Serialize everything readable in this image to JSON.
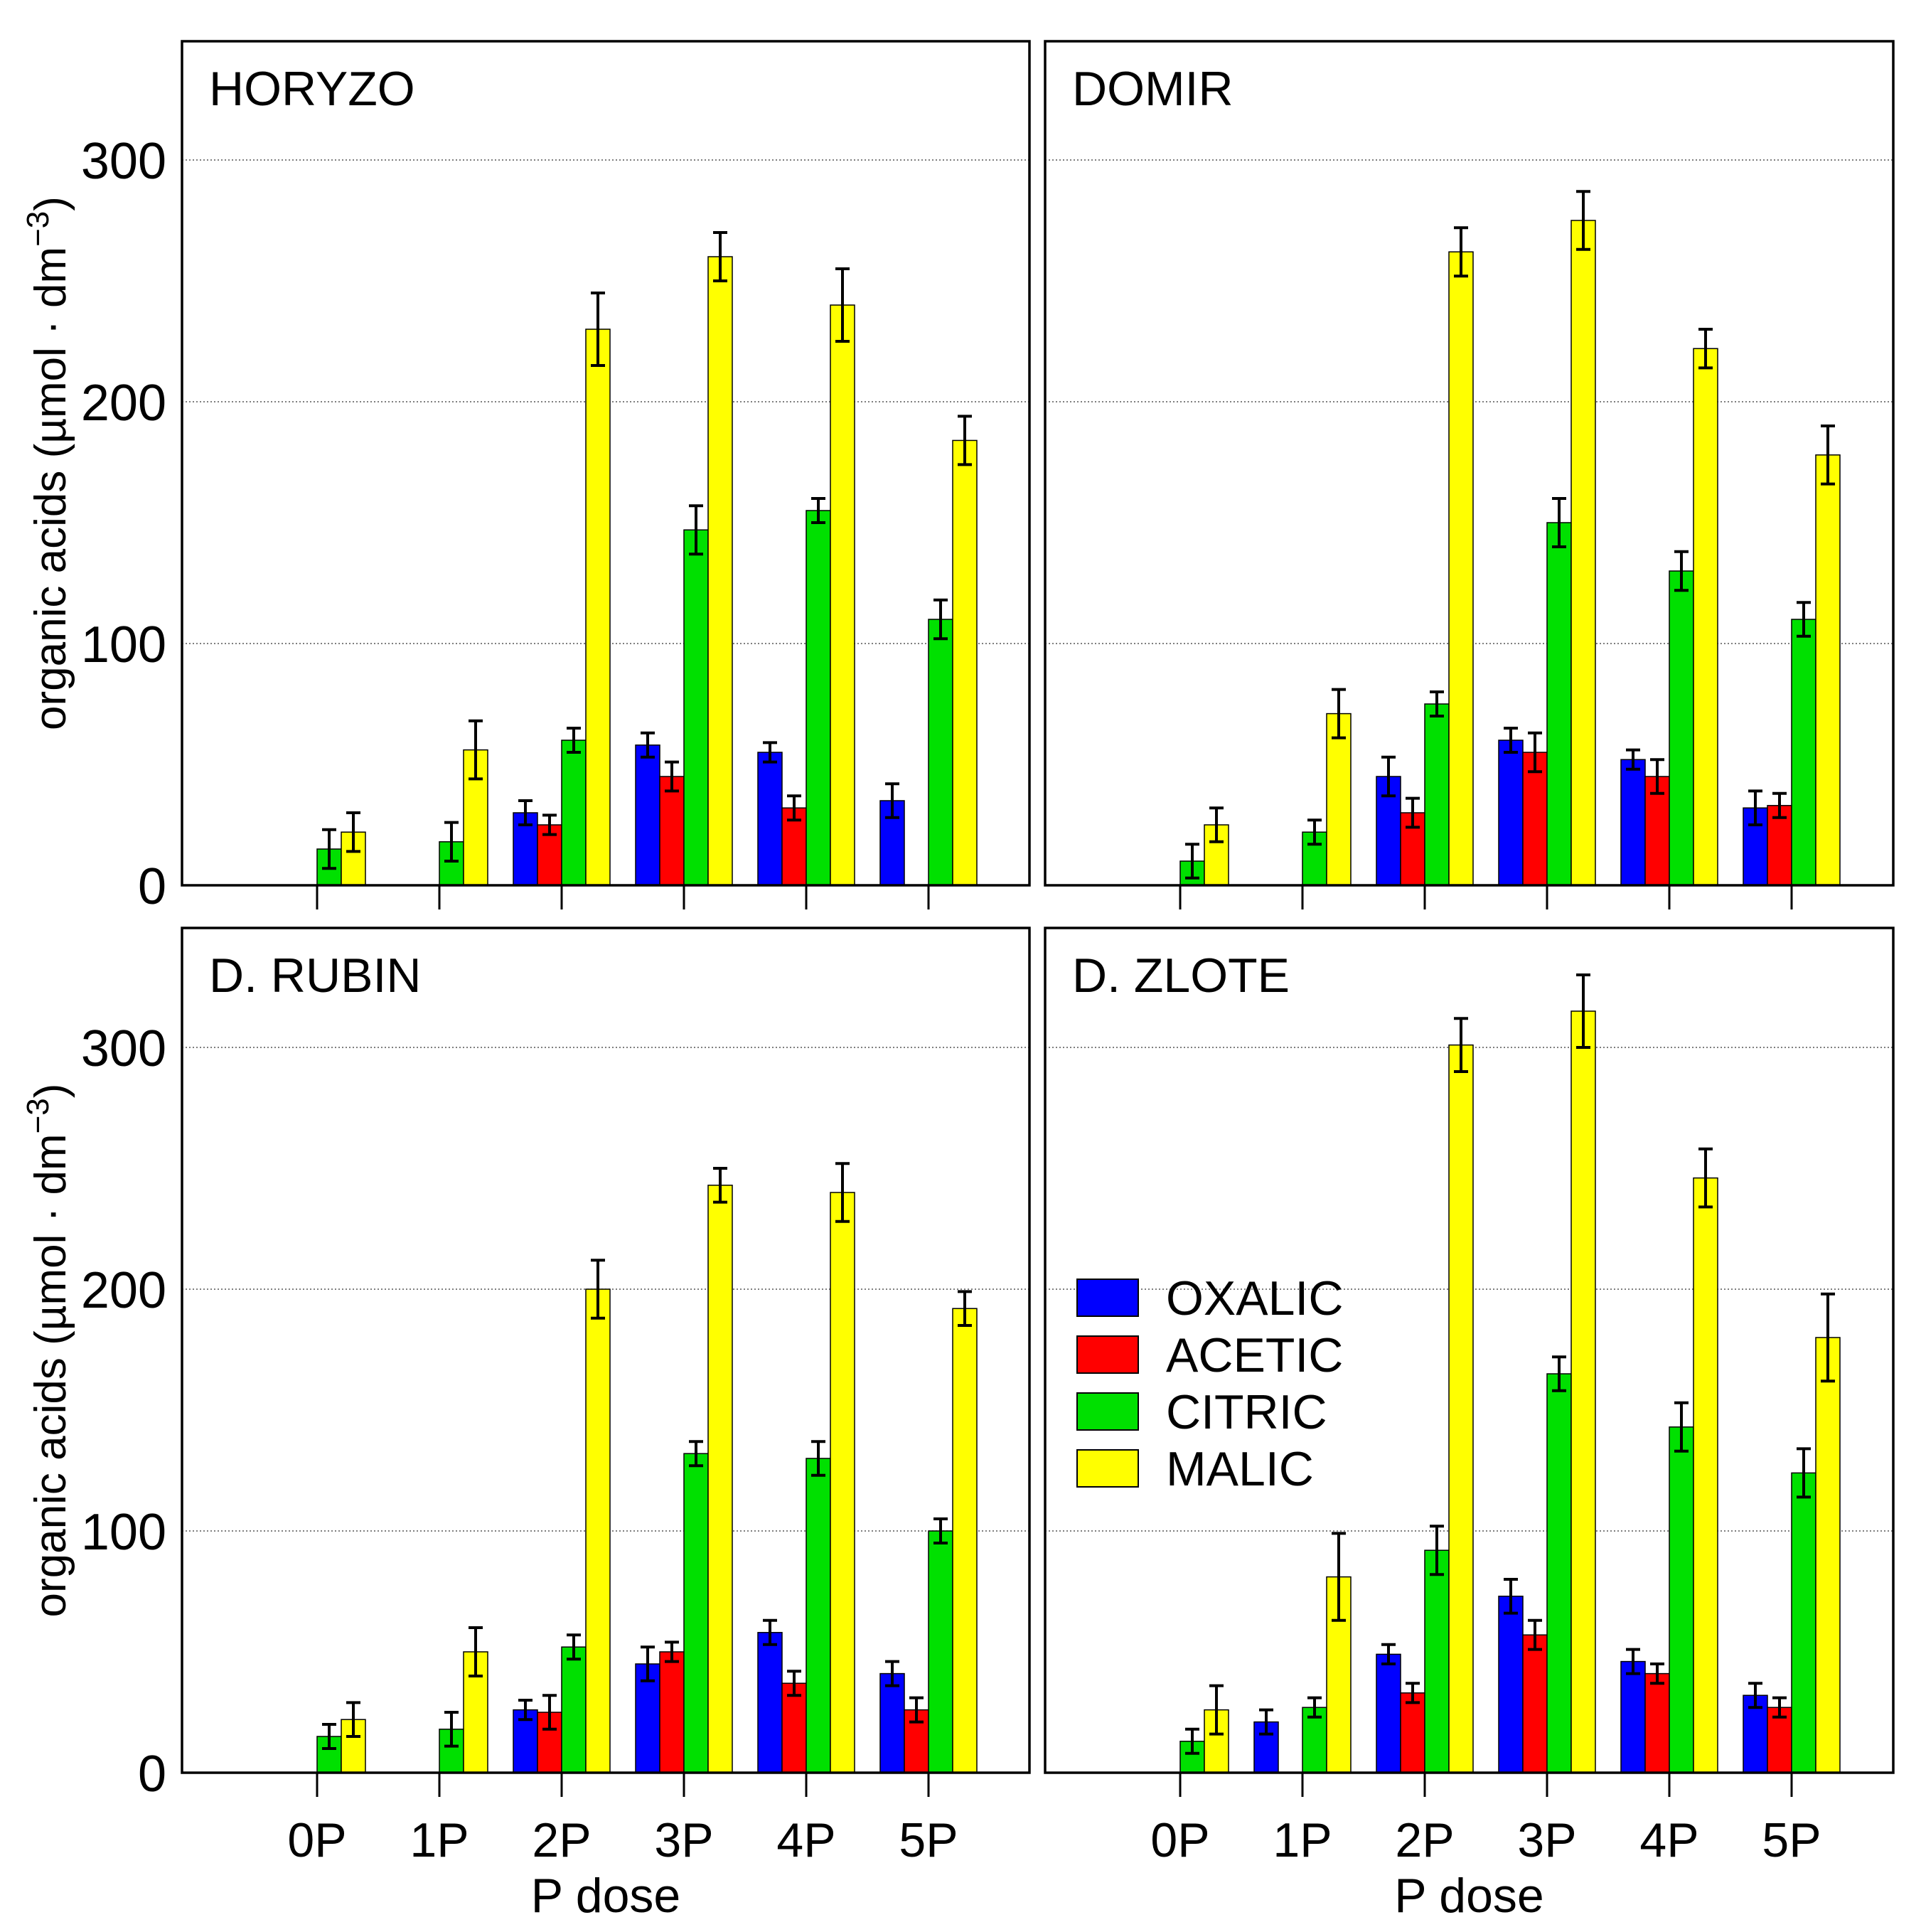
{
  "figure": {
    "ylabel": "organic acids (µmol · dm",
    "ylabel_superscript": "−3",
    "ylabel_close": ")",
    "xlabel": "P dose",
    "y_ticks": [
      0,
      100,
      200,
      300
    ],
    "categories": [
      "0P",
      "1P",
      "2P",
      "3P",
      "4P",
      "5P"
    ],
    "ylim": [
      0,
      340
    ],
    "series_colors": [
      "#0000ff",
      "#ff0000",
      "#00e000",
      "#ffff00"
    ],
    "legend": {
      "placement": "inside D. ZLOTE panel, middle-left",
      "items": [
        {
          "label": "OXALIC",
          "color": "#0000ff"
        },
        {
          "label": "ACETIC",
          "color": "#ff0000"
        },
        {
          "label": "CITRIC",
          "color": "#00e000"
        },
        {
          "label": "MALIC",
          "color": "#ffff00"
        }
      ]
    }
  },
  "chart_data": [
    {
      "type": "bar",
      "title": "HORYZO",
      "position": "top-left",
      "categories": [
        "0P",
        "1P",
        "2P",
        "3P",
        "4P",
        "5P"
      ],
      "xlabel": "",
      "ylabel": "organic acids (µmol · dm−3)",
      "ylim": [
        0,
        340
      ],
      "series": [
        {
          "name": "OXALIC",
          "values": [
            null,
            null,
            30,
            58,
            55,
            35
          ],
          "errors": [
            null,
            null,
            5,
            5,
            4,
            7
          ]
        },
        {
          "name": "ACETIC",
          "values": [
            null,
            null,
            25,
            45,
            32,
            null
          ],
          "errors": [
            null,
            null,
            4,
            6,
            5,
            null
          ]
        },
        {
          "name": "CITRIC",
          "values": [
            15,
            18,
            60,
            147,
            155,
            110
          ],
          "errors": [
            8,
            8,
            5,
            10,
            5,
            8
          ]
        },
        {
          "name": "MALIC",
          "values": [
            22,
            56,
            230,
            260,
            240,
            184
          ],
          "errors": [
            8,
            12,
            15,
            10,
            15,
            10
          ]
        }
      ]
    },
    {
      "type": "bar",
      "title": "DOMIR",
      "position": "top-right",
      "categories": [
        "0P",
        "1P",
        "2P",
        "3P",
        "4P",
        "5P"
      ],
      "xlabel": "",
      "ylabel": "",
      "ylim": [
        0,
        340
      ],
      "series": [
        {
          "name": "OXALIC",
          "values": [
            null,
            null,
            45,
            60,
            52,
            32
          ],
          "errors": [
            null,
            null,
            8,
            5,
            4,
            7
          ]
        },
        {
          "name": "ACETIC",
          "values": [
            null,
            null,
            30,
            55,
            45,
            33
          ],
          "errors": [
            null,
            null,
            6,
            8,
            7,
            5
          ]
        },
        {
          "name": "CITRIC",
          "values": [
            10,
            22,
            75,
            150,
            130,
            110
          ],
          "errors": [
            7,
            5,
            5,
            10,
            8,
            7
          ]
        },
        {
          "name": "MALIC",
          "values": [
            25,
            71,
            262,
            275,
            222,
            178
          ],
          "errors": [
            7,
            10,
            10,
            12,
            8,
            12
          ]
        }
      ]
    },
    {
      "type": "bar",
      "title": "D. RUBIN",
      "position": "bottom-left",
      "categories": [
        "0P",
        "1P",
        "2P",
        "3P",
        "4P",
        "5P"
      ],
      "xlabel": "P dose",
      "ylabel": "organic acids (µmol · dm−3)",
      "ylim": [
        0,
        340
      ],
      "series": [
        {
          "name": "OXALIC",
          "values": [
            null,
            null,
            26,
            45,
            58,
            41
          ],
          "errors": [
            null,
            null,
            4,
            7,
            5,
            5
          ]
        },
        {
          "name": "ACETIC",
          "values": [
            null,
            null,
            25,
            50,
            37,
            26
          ],
          "errors": [
            null,
            null,
            7,
            4,
            5,
            5
          ]
        },
        {
          "name": "CITRIC",
          "values": [
            15,
            18,
            52,
            132,
            130,
            100
          ],
          "errors": [
            5,
            7,
            5,
            5,
            7,
            5
          ]
        },
        {
          "name": "MALIC",
          "values": [
            22,
            50,
            200,
            243,
            240,
            192
          ],
          "errors": [
            7,
            10,
            12,
            7,
            12,
            7
          ]
        }
      ]
    },
    {
      "type": "bar",
      "title": "D. ZLOTE",
      "position": "bottom-right",
      "categories": [
        "0P",
        "1P",
        "2P",
        "3P",
        "4P",
        "5P"
      ],
      "xlabel": "P dose",
      "ylabel": "",
      "ylim": [
        0,
        340
      ],
      "series": [
        {
          "name": "OXALIC",
          "values": [
            null,
            21,
            49,
            73,
            46,
            32
          ],
          "errors": [
            null,
            5,
            4,
            7,
            5,
            5
          ]
        },
        {
          "name": "ACETIC",
          "values": [
            null,
            null,
            33,
            57,
            41,
            27
          ],
          "errors": [
            null,
            null,
            4,
            6,
            4,
            4
          ]
        },
        {
          "name": "CITRIC",
          "values": [
            13,
            27,
            92,
            165,
            143,
            124
          ],
          "errors": [
            5,
            4,
            10,
            7,
            10,
            10
          ]
        },
        {
          "name": "MALIC",
          "values": [
            26,
            81,
            301,
            315,
            246,
            180
          ],
          "errors": [
            10,
            18,
            11,
            15,
            12,
            18
          ]
        }
      ]
    }
  ]
}
